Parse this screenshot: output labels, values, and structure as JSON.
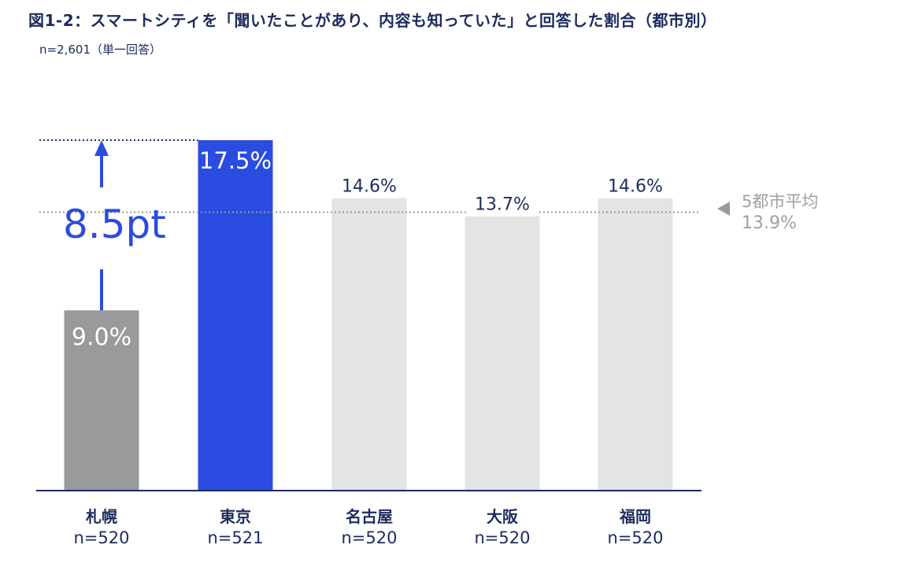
{
  "chart_data": {
    "type": "bar",
    "title": "図1-2：スマートシティを「聞いたことがあり、内容も知っていた」と回答した割合（都市別）",
    "subtitle": "n=2,601（単一回答）",
    "unit": "%",
    "categories": [
      "札幌",
      "東京",
      "名古屋",
      "大阪",
      "福岡"
    ],
    "sample_sizes": [
      "n=520",
      "n=521",
      "n=520",
      "n=520",
      "n=520"
    ],
    "values": [
      9.0,
      17.5,
      14.6,
      13.7,
      14.6
    ],
    "value_labels": [
      "9.0%",
      "17.5%",
      "14.6%",
      "13.7%",
      "14.6%"
    ],
    "ylim": [
      0,
      17.5
    ],
    "grid": false,
    "average": {
      "label": "5都市平均",
      "value": 13.9,
      "value_label": "13.9%"
    },
    "difference_annotation": {
      "label": "8.5pt",
      "from_category": "札幌",
      "to_category": "東京"
    },
    "colors": {
      "highlight": "#2b4ce0",
      "lowest": "#9a9a9a",
      "others": "#e4e4e4",
      "axis": "#1d2b5e",
      "category_text": "#1d2b5e",
      "average_text": "#a0a0a0",
      "arrow": "#2b4ce0"
    }
  }
}
